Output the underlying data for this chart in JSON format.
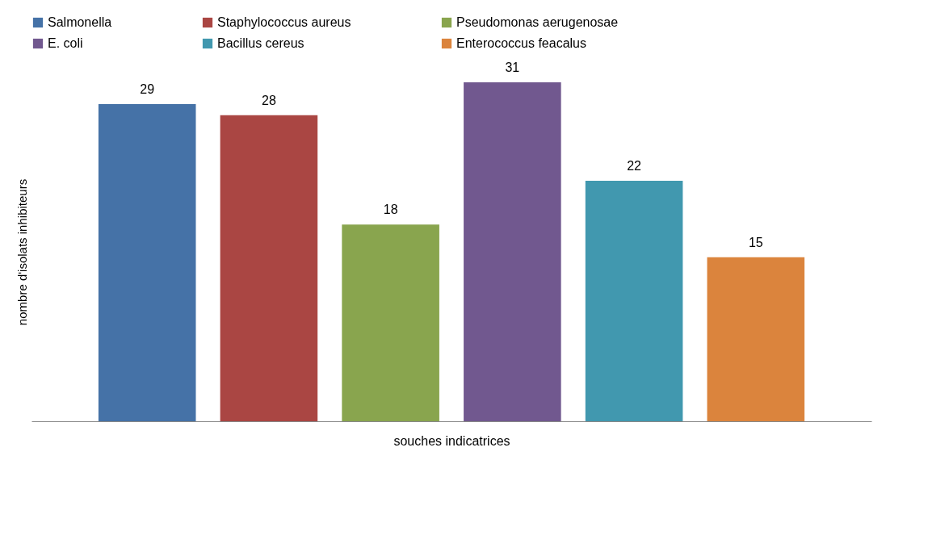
{
  "chart_data": {
    "type": "bar",
    "xlabel": "souches indicatrices",
    "ylabel": "nombre d'isolats inhibiteurs",
    "categories": [
      null,
      null,
      null,
      null,
      null,
      null
    ],
    "series": [
      {
        "name": "Salmonella",
        "color": "#4572a7",
        "values": [
          29,
          null,
          null,
          null,
          null,
          null
        ]
      },
      {
        "name": "Staphylococcus aureus",
        "color": "#aa4643",
        "values": [
          null,
          28,
          null,
          null,
          null,
          null
        ]
      },
      {
        "name": "Pseudomonas aerugenosae",
        "color": "#89a54e",
        "values": [
          null,
          null,
          18,
          null,
          null,
          null
        ]
      },
      {
        "name": "E. coli",
        "color": "#71588f",
        "values": [
          null,
          null,
          null,
          31,
          null,
          null
        ]
      },
      {
        "name": "Bacillus cereus",
        "color": "#4198af",
        "values": [
          null,
          null,
          null,
          null,
          22,
          null
        ]
      },
      {
        "name": "Enterococcus feacalus",
        "color": "#db843d",
        "values": [
          null,
          null,
          null,
          null,
          null,
          15
        ]
      }
    ],
    "stacked": true,
    "data_labels": true,
    "legend": "top",
    "tick_labels": false,
    "grid": false
  }
}
